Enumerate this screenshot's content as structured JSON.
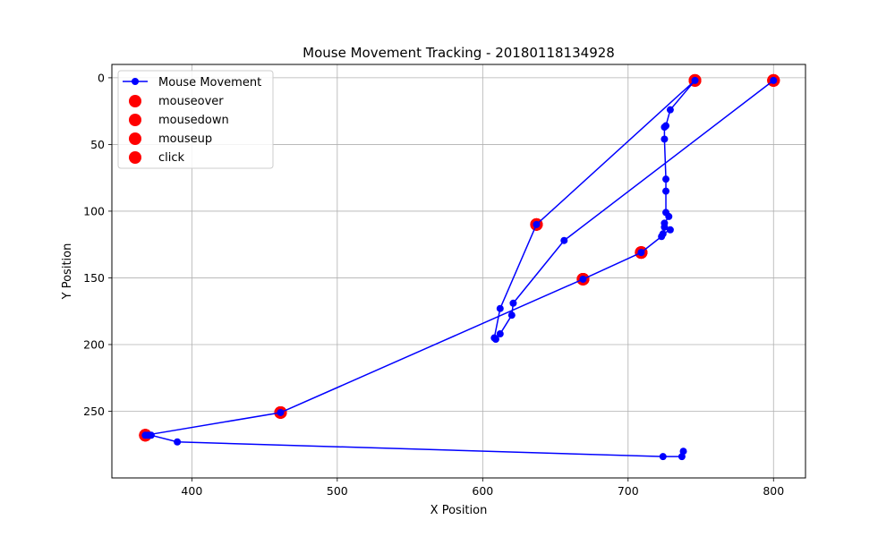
{
  "chart_data": {
    "type": "scatter",
    "title": "Mouse Movement Tracking - 20180118134928",
    "xlabel": "X Position",
    "ylabel": "Y Position",
    "xlim": [
      345,
      822
    ],
    "ylim": [
      300,
      -10
    ],
    "y_inverted": true,
    "xticks": [
      400,
      500,
      600,
      700,
      800
    ],
    "yticks": [
      0,
      50,
      100,
      150,
      200,
      250
    ],
    "grid": true,
    "legend_position": "top-left",
    "colors": {
      "path": "#0000ff",
      "events": "#ff0000",
      "grid": "#b0b0b0"
    },
    "series": [
      {
        "name": "Mouse Movement",
        "kind": "line+marker",
        "x": [
          738,
          737,
          724,
          390,
          372,
          370,
          368,
          461,
          669,
          709,
          723,
          724,
          729,
          725,
          725,
          728,
          726,
          726,
          726,
          725,
          725,
          726,
          729,
          746,
          637,
          612,
          608,
          609,
          612,
          620,
          621,
          656,
          800
        ],
        "y": [
          280,
          284,
          284,
          273,
          268,
          268,
          268,
          251,
          151,
          131,
          119,
          117,
          114,
          112,
          109,
          104,
          101,
          85,
          76,
          46,
          37,
          36,
          24,
          2,
          110,
          173,
          195,
          196,
          192,
          178,
          169,
          122,
          2
        ]
      },
      {
        "name": "mouseover",
        "kind": "event",
        "x": [
          368,
          461,
          669,
          709,
          746,
          637,
          800
        ],
        "y": [
          268,
          251,
          151,
          131,
          2,
          110,
          2
        ]
      },
      {
        "name": "mousedown",
        "kind": "event",
        "x": [
          368,
          461,
          669,
          709,
          746,
          637,
          800
        ],
        "y": [
          268,
          251,
          151,
          131,
          2,
          110,
          2
        ]
      },
      {
        "name": "mouseup",
        "kind": "event",
        "x": [
          368,
          461,
          669,
          709,
          746,
          637,
          800
        ],
        "y": [
          268,
          251,
          151,
          131,
          2,
          110,
          2
        ]
      },
      {
        "name": "click",
        "kind": "event",
        "x": [
          368,
          461,
          669,
          709,
          746,
          637,
          800
        ],
        "y": [
          268,
          251,
          151,
          131,
          2,
          110,
          2
        ]
      }
    ]
  }
}
